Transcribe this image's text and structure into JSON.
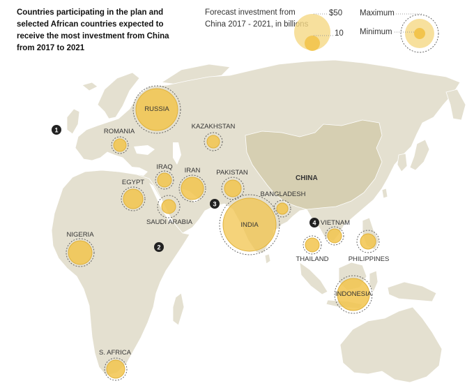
{
  "title": "Countries participating in the plan and selected African countries expected to receive the most investment from China from 2017 to 2021",
  "legend": {
    "heading": "Forecast investment from China 2017 - 2021, in billions",
    "size_large_label": "$50",
    "size_small_label": "10",
    "max_label": "Maximum",
    "min_label": "Minimum"
  },
  "colors": {
    "land": "#e4e0d0",
    "china": "#d6cfb2",
    "ocean": "#ffffff",
    "bubble_fill": "#f2c44d",
    "bubble_stroke": "#e0b23a",
    "ring_stroke": "#555555"
  },
  "china_label": "CHINA",
  "countries": [
    {
      "name": "RUSSIA",
      "label": "RUSSIA"
    },
    {
      "name": "ROMANIA",
      "label": "ROMANIA"
    },
    {
      "name": "KAZAKHSTAN",
      "label": "KAZAKHSTAN"
    },
    {
      "name": "IRAQ",
      "label": "IRAQ"
    },
    {
      "name": "IRAN",
      "label": "IRAN"
    },
    {
      "name": "EGYPT",
      "label": "EGYPT"
    },
    {
      "name": "PAKISTAN",
      "label": "PAKISTAN"
    },
    {
      "name": "SAUDI ARABIA",
      "label": "SAUDI ARABIA"
    },
    {
      "name": "BANGLADESH",
      "label": "BANGLADESH"
    },
    {
      "name": "INDIA",
      "label": "INDIA"
    },
    {
      "name": "NIGERIA",
      "label": "NIGERIA"
    },
    {
      "name": "VIETNAM",
      "label": "VIETNAM"
    },
    {
      "name": "THAILAND",
      "label": "THAILAND"
    },
    {
      "name": "PHILIPPINES",
      "label": "PHILIPPINES"
    },
    {
      "name": "INDONESIA",
      "label": "INDONESIA"
    },
    {
      "name": "S. AFRICA",
      "label": "S. AFRICA"
    }
  ],
  "markers": [
    "1",
    "2",
    "3",
    "4"
  ]
}
